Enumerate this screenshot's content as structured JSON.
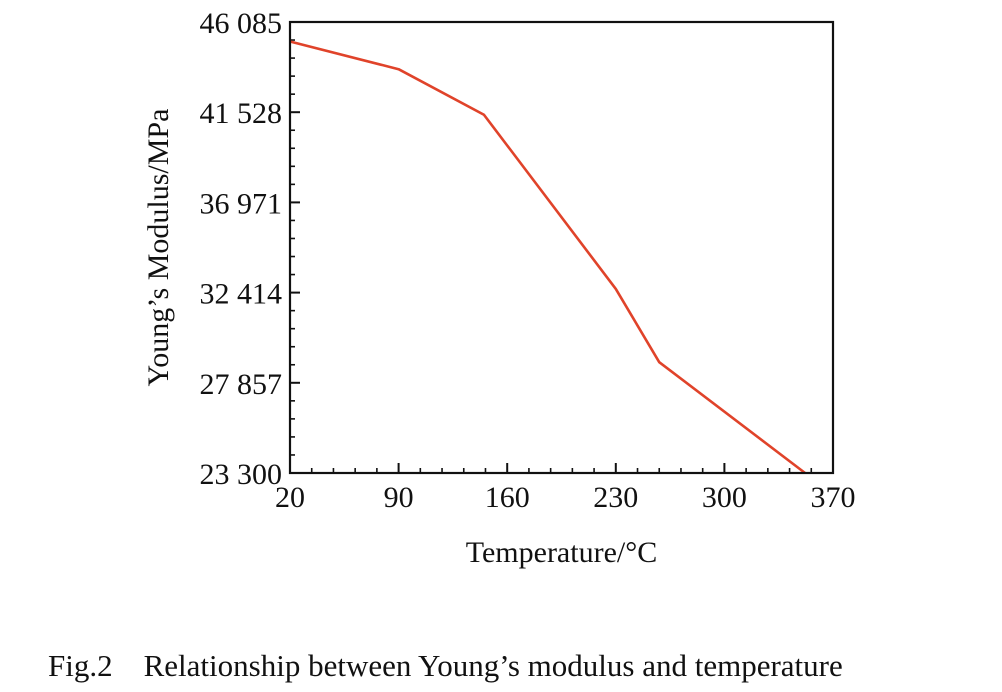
{
  "caption": {
    "figure_number": "Fig.2",
    "text": "Relationship between Young’s modulus and temperature"
  },
  "chart_data": {
    "type": "line",
    "xlabel": "Temperature/°C",
    "ylabel": "Young’s Modulus/MPa",
    "xlim": [
      20,
      370
    ],
    "ylim": [
      23300,
      46085
    ],
    "x_ticks": [
      20,
      90,
      160,
      230,
      300,
      370
    ],
    "x_tick_labels": [
      "20",
      "90",
      "160",
      "230",
      "300",
      "370"
    ],
    "y_ticks": [
      23300,
      27857,
      32414,
      36971,
      41528,
      46085
    ],
    "y_tick_labels": [
      "23 300",
      "27 857",
      "32 414",
      "36 971",
      "41 528",
      "46 085"
    ],
    "grid": false,
    "series": [
      {
        "color": "#e0432a",
        "x": [
          20,
          90,
          145,
          230,
          258,
          352
        ],
        "y": [
          45100,
          43700,
          41400,
          32600,
          28900,
          23300
        ]
      }
    ]
  }
}
